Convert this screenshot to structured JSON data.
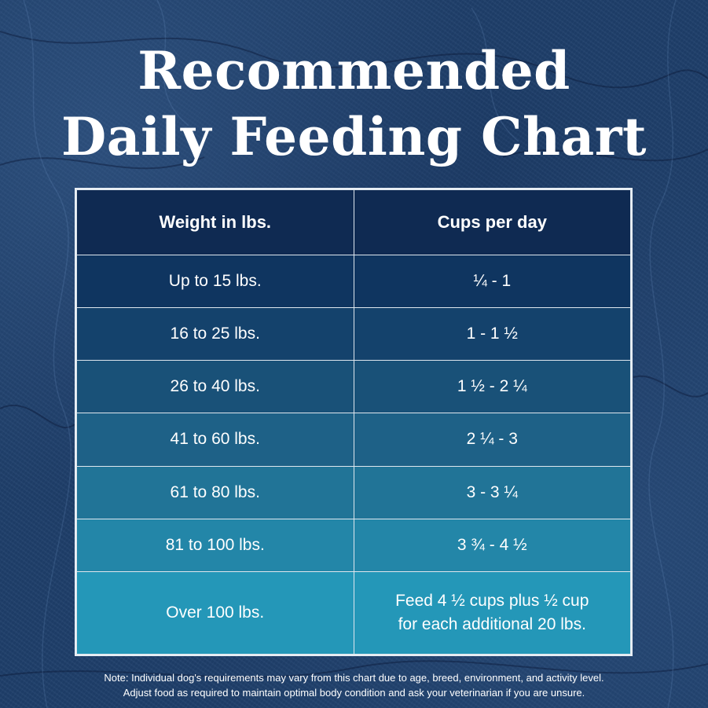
{
  "title": {
    "line1": "Recommended",
    "line2": "Daily Feeding Chart"
  },
  "chart_data": {
    "type": "table",
    "columns": [
      "Weight in lbs.",
      "Cups per day"
    ],
    "rows": [
      {
        "weight": "Up to 15 lbs.",
        "cups": "¼  - 1"
      },
      {
        "weight": "16 to 25 lbs.",
        "cups": "1 - 1 ½"
      },
      {
        "weight": "26 to 40 lbs.",
        "cups": "1 ½  - 2 ¼"
      },
      {
        "weight": "41 to 60 lbs.",
        "cups": "2 ¼ - 3"
      },
      {
        "weight": "61 to 80 lbs.",
        "cups": "3 - 3 ¼"
      },
      {
        "weight": "81 to 100 lbs.",
        "cups": "3 ¾  - 4 ½"
      },
      {
        "weight": "Over 100 lbs.",
        "cups_line1": "Feed 4 ½ cups plus ½ cup",
        "cups_line2": "for each additional 20 lbs."
      }
    ],
    "row_colors": [
      "#0f3560",
      "#14426c",
      "#195178",
      "#1e6187",
      "#217497",
      "#2386a8",
      "#2497b8"
    ]
  },
  "note": {
    "line1": "Note: Individual dog's requirements may vary from this chart due to age, breed, environment, and activity level.",
    "line2": "Adjust food as required to maintain optimal body condition and ask your veterinarian if you are unsure."
  }
}
